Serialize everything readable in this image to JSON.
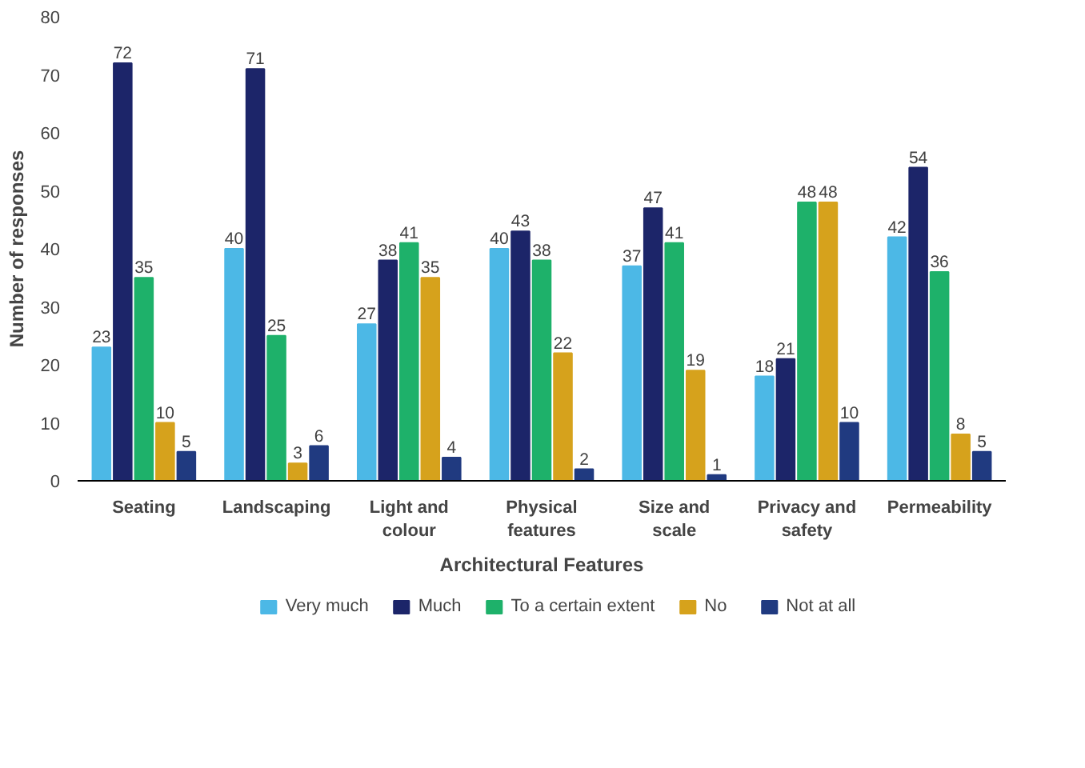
{
  "chart_data": {
    "type": "bar",
    "xlabel": "Architectural Features",
    "ylabel": "Number of responses",
    "categories": [
      "Seating",
      "Landscaping",
      "Light and colour",
      "Physical features",
      "Size and scale",
      "Privacy and safety",
      "Permeability"
    ],
    "series": [
      {
        "name": "Very much",
        "color": "#4cb8e6",
        "values": [
          23,
          40,
          27,
          40,
          37,
          18,
          42
        ]
      },
      {
        "name": "Much",
        "color": "#1c2569",
        "values": [
          72,
          71,
          38,
          43,
          47,
          21,
          54
        ]
      },
      {
        "name": "To a certain extent",
        "color": "#1eb16a",
        "values": [
          35,
          25,
          41,
          38,
          41,
          48,
          36
        ]
      },
      {
        "name": "No",
        "color": "#d6a21c",
        "values": [
          10,
          3,
          35,
          22,
          19,
          48,
          8
        ]
      },
      {
        "name": "Not at all",
        "color": "#203a80",
        "values": [
          5,
          6,
          4,
          2,
          1,
          10,
          5
        ]
      }
    ],
    "ylim": [
      0,
      80
    ],
    "yticks": [
      0,
      10,
      20,
      30,
      40,
      50,
      60,
      70,
      80
    ],
    "data_labels": true,
    "legend": "bottom",
    "grid": false
  }
}
